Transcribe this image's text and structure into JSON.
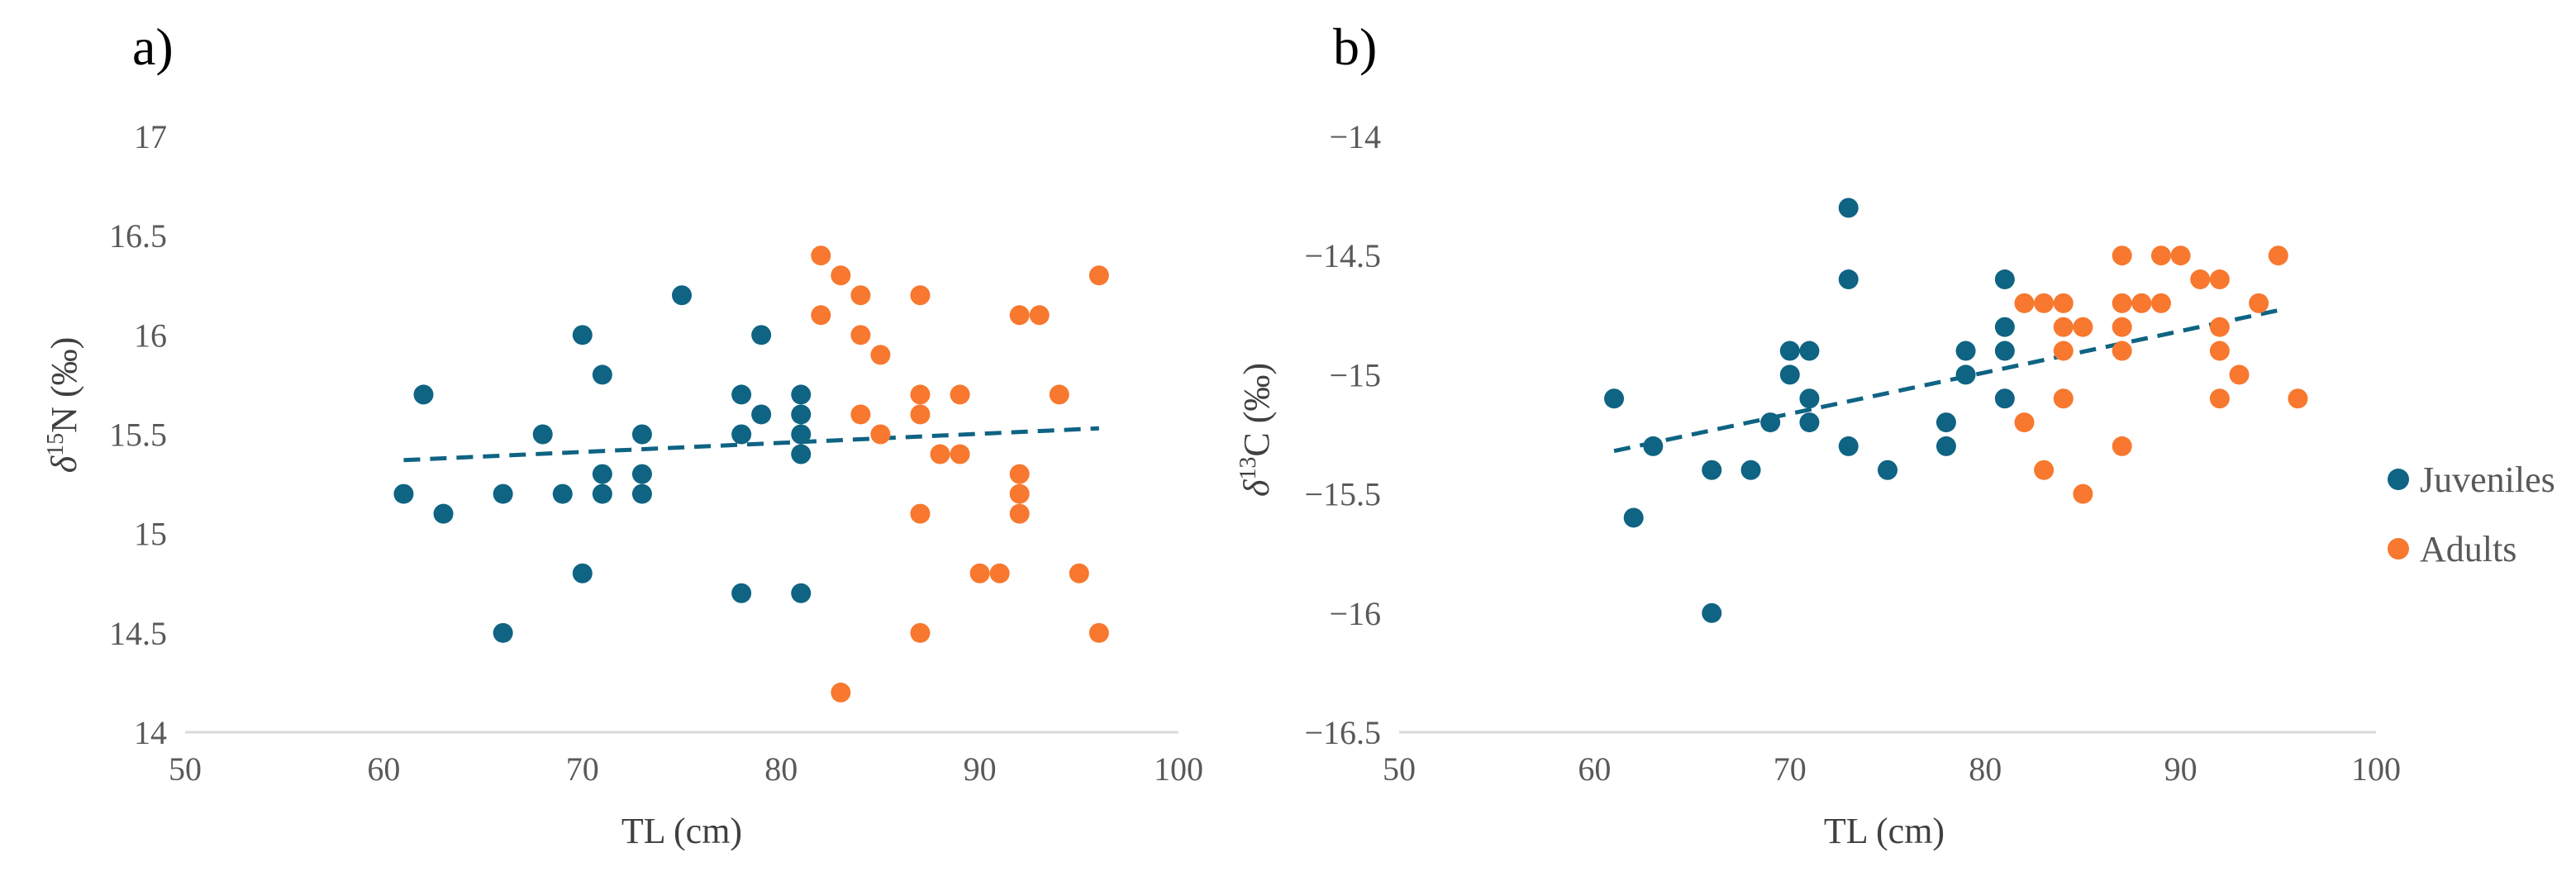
{
  "colors": {
    "juveniles": "#0f6383",
    "adults": "#f7782e",
    "axis": "#d9d9d9",
    "trend": "#0f6383"
  },
  "legend": {
    "items": [
      {
        "label": "Juveniles",
        "color": "#0f6383"
      },
      {
        "label": "Adults",
        "color": "#f7782e"
      }
    ],
    "placement": "right"
  },
  "chart_data": [
    {
      "type": "scatter",
      "panel_label": "a)",
      "xlabel": "TL (cm)",
      "ylabel": {
        "delta": "δ",
        "sup": "15",
        "element": "N (‰)"
      },
      "xlim": [
        50,
        100
      ],
      "ylim": [
        14,
        17
      ],
      "xticks": [
        "50",
        "60",
        "70",
        "80",
        "90",
        "100"
      ],
      "yticks": [
        "14",
        "14.5",
        "15",
        "15.5",
        "16",
        "16.5",
        "17"
      ],
      "grid": false,
      "series": [
        {
          "name": "Juveniles",
          "color": "#0f6383",
          "points": [
            [
              61,
              15.2
            ],
            [
              62,
              15.7
            ],
            [
              63,
              15.1
            ],
            [
              66,
              15.2
            ],
            [
              66,
              14.5
            ],
            [
              68,
              15.5
            ],
            [
              69,
              15.2
            ],
            [
              70,
              16.0
            ],
            [
              70,
              14.8
            ],
            [
              71,
              15.8
            ],
            [
              71,
              15.3
            ],
            [
              71,
              15.2
            ],
            [
              73,
              15.5
            ],
            [
              73,
              15.3
            ],
            [
              73,
              15.2
            ],
            [
              75,
              16.2
            ],
            [
              78,
              15.7
            ],
            [
              78,
              15.5
            ],
            [
              78,
              14.7
            ],
            [
              79,
              16.0
            ],
            [
              79,
              15.6
            ],
            [
              81,
              15.7
            ],
            [
              81,
              15.6
            ],
            [
              81,
              15.5
            ],
            [
              81,
              15.4
            ],
            [
              81,
              14.7
            ]
          ]
        },
        {
          "name": "Adults",
          "color": "#f7782e",
          "points": [
            [
              82,
              16.4
            ],
            [
              82,
              16.1
            ],
            [
              83,
              16.3
            ],
            [
              83,
              14.2
            ],
            [
              84,
              16.2
            ],
            [
              84,
              16.0
            ],
            [
              84,
              15.6
            ],
            [
              85,
              15.9
            ],
            [
              85,
              15.5
            ],
            [
              87,
              16.2
            ],
            [
              87,
              15.7
            ],
            [
              87,
              15.6
            ],
            [
              87,
              15.1
            ],
            [
              87,
              14.5
            ],
            [
              88,
              15.4
            ],
            [
              89,
              15.7
            ],
            [
              89,
              15.4
            ],
            [
              90,
              14.8
            ],
            [
              91,
              14.8
            ],
            [
              92,
              16.1
            ],
            [
              92,
              15.3
            ],
            [
              92,
              15.2
            ],
            [
              92,
              15.1
            ],
            [
              93,
              16.1
            ],
            [
              94,
              15.7
            ],
            [
              95,
              14.8
            ],
            [
              96,
              16.3
            ],
            [
              96,
              14.5
            ]
          ]
        }
      ],
      "trendline": {
        "x": [
          61,
          96
        ],
        "y": [
          15.37,
          15.53
        ],
        "style": "dashed"
      }
    },
    {
      "type": "scatter",
      "panel_label": "b)",
      "xlabel": "TL (cm)",
      "ylabel": {
        "delta": "δ",
        "sup": "13",
        "element": "C (‰)"
      },
      "xlim": [
        50,
        100
      ],
      "ylim": [
        -16.5,
        -14
      ],
      "xticks": [
        "50",
        "60",
        "70",
        "80",
        "90",
        "100"
      ],
      "yticks": [
        "-16.5",
        "-16",
        "-15.5",
        "-15",
        "-14.5",
        "-14"
      ],
      "grid": false,
      "series": [
        {
          "name": "Juveniles",
          "color": "#0f6383",
          "points": [
            [
              61,
              -15.1
            ],
            [
              62,
              -15.6
            ],
            [
              63,
              -15.3
            ],
            [
              66,
              -15.4
            ],
            [
              66,
              -16.0
            ],
            [
              68,
              -15.4
            ],
            [
              69,
              -15.2
            ],
            [
              70,
              -14.9
            ],
            [
              70,
              -15.0
            ],
            [
              71,
              -14.9
            ],
            [
              71,
              -15.1
            ],
            [
              71,
              -15.2
            ],
            [
              73,
              -14.3
            ],
            [
              73,
              -14.6
            ],
            [
              73,
              -15.3
            ],
            [
              75,
              -15.4
            ],
            [
              78,
              -15.2
            ],
            [
              78,
              -15.3
            ],
            [
              79,
              -14.9
            ],
            [
              79,
              -15.0
            ],
            [
              81,
              -14.6
            ],
            [
              81,
              -14.8
            ],
            [
              81,
              -14.9
            ],
            [
              81,
              -15.1
            ]
          ]
        },
        {
          "name": "Adults",
          "color": "#f7782e",
          "points": [
            [
              82,
              -14.7
            ],
            [
              82,
              -15.2
            ],
            [
              83,
              -14.7
            ],
            [
              83,
              -15.4
            ],
            [
              84,
              -14.7
            ],
            [
              84,
              -14.8
            ],
            [
              84,
              -14.9
            ],
            [
              84,
              -15.1
            ],
            [
              85,
              -14.8
            ],
            [
              85,
              -15.5
            ],
            [
              87,
              -14.5
            ],
            [
              87,
              -14.7
            ],
            [
              87,
              -14.8
            ],
            [
              87,
              -14.9
            ],
            [
              87,
              -15.3
            ],
            [
              88,
              -14.7
            ],
            [
              89,
              -14.5
            ],
            [
              89,
              -14.7
            ],
            [
              90,
              -14.5
            ],
            [
              91,
              -14.6
            ],
            [
              92,
              -14.6
            ],
            [
              92,
              -14.8
            ],
            [
              92,
              -14.9
            ],
            [
              92,
              -15.1
            ],
            [
              93,
              -15.0
            ],
            [
              94,
              -14.7
            ],
            [
              95,
              -14.5
            ],
            [
              96,
              -15.1
            ]
          ]
        }
      ],
      "trendline": {
        "x": [
          61,
          95
        ],
        "y": [
          -15.32,
          -14.73
        ],
        "style": "dashed"
      }
    }
  ]
}
